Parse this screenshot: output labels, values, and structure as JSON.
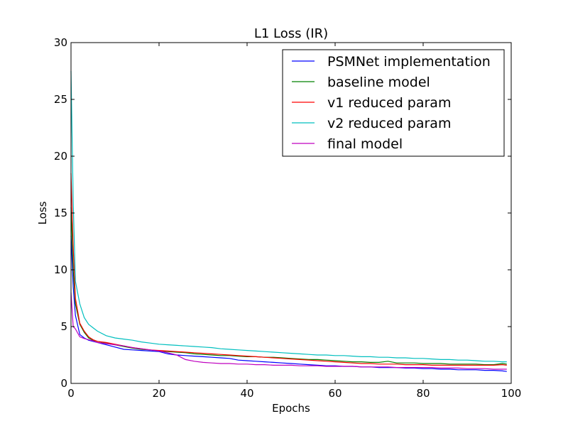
{
  "chart_data": {
    "type": "line",
    "title": "L1 Loss (IR)",
    "xlabel": "Epochs",
    "ylabel": "Loss",
    "xlim": [
      0,
      100
    ],
    "ylim": [
      0,
      30
    ],
    "xticks": [
      0,
      20,
      40,
      60,
      80,
      100
    ],
    "yticks": [
      0,
      5,
      10,
      15,
      20,
      25,
      30
    ],
    "grid": false,
    "legend_position": "top-right",
    "series": [
      {
        "name": "PSMNet implementation",
        "color": "#0000ff",
        "x": [
          0,
          0.5,
          1,
          2,
          3,
          4,
          5,
          6,
          8,
          10,
          12,
          14,
          16,
          18,
          20,
          22,
          24,
          26,
          28,
          30,
          32,
          34,
          36,
          38,
          40,
          42,
          44,
          46,
          48,
          50,
          52,
          54,
          56,
          58,
          60,
          62,
          64,
          66,
          68,
          70,
          72,
          74,
          76,
          78,
          80,
          82,
          84,
          86,
          88,
          90,
          92,
          94,
          96,
          98,
          99
        ],
        "y": [
          13.0,
          8.5,
          6.0,
          4.3,
          4.0,
          3.8,
          3.7,
          3.6,
          3.4,
          3.2,
          3.0,
          2.95,
          2.9,
          2.85,
          2.8,
          2.6,
          2.5,
          2.45,
          2.4,
          2.35,
          2.3,
          2.25,
          2.2,
          2.05,
          2.0,
          1.95,
          1.9,
          1.85,
          1.8,
          1.75,
          1.7,
          1.65,
          1.6,
          1.55,
          1.55,
          1.5,
          1.5,
          1.45,
          1.45,
          1.4,
          1.4,
          1.4,
          1.35,
          1.35,
          1.3,
          1.3,
          1.25,
          1.25,
          1.2,
          1.2,
          1.2,
          1.15,
          1.15,
          1.1,
          1.05
        ]
      },
      {
        "name": "baseline model",
        "color": "#008000",
        "x": [
          0,
          0.5,
          1,
          2,
          3,
          4,
          5,
          6,
          8,
          10,
          12,
          14,
          16,
          18,
          20,
          22,
          24,
          26,
          28,
          30,
          32,
          34,
          36,
          38,
          40,
          42,
          44,
          46,
          48,
          50,
          52,
          54,
          56,
          58,
          60,
          62,
          64,
          66,
          68,
          70,
          72,
          74,
          76,
          78,
          80,
          82,
          84,
          86,
          88,
          90,
          92,
          94,
          96,
          98,
          99
        ],
        "y": [
          15.5,
          10.0,
          7.0,
          5.2,
          4.5,
          4.0,
          3.8,
          3.7,
          3.55,
          3.4,
          3.25,
          3.1,
          3.0,
          2.95,
          2.85,
          2.8,
          2.75,
          2.7,
          2.6,
          2.55,
          2.5,
          2.45,
          2.45,
          2.4,
          2.35,
          2.35,
          2.3,
          2.3,
          2.25,
          2.2,
          2.15,
          2.1,
          2.1,
          2.05,
          2.0,
          1.95,
          1.9,
          1.9,
          1.85,
          1.85,
          1.95,
          1.8,
          1.8,
          1.8,
          1.75,
          1.75,
          1.75,
          1.7,
          1.7,
          1.7,
          1.7,
          1.65,
          1.65,
          1.75,
          1.7
        ]
      },
      {
        "name": "v1 reduced param",
        "color": "#ff0000",
        "x": [
          0,
          0.5,
          1,
          2,
          3,
          4,
          5,
          6,
          8,
          10,
          12,
          14,
          16,
          18,
          20,
          22,
          24,
          26,
          28,
          30,
          32,
          34,
          36,
          38,
          40,
          42,
          44,
          46,
          48,
          50,
          52,
          54,
          56,
          58,
          60,
          62,
          64,
          66,
          68,
          70,
          72,
          74,
          76,
          78,
          80,
          82,
          84,
          86,
          88,
          90,
          92,
          94,
          96,
          98,
          99
        ],
        "y": [
          18.5,
          12.0,
          7.5,
          5.3,
          4.6,
          4.1,
          3.85,
          3.7,
          3.6,
          3.45,
          3.3,
          3.15,
          3.05,
          2.95,
          2.9,
          2.85,
          2.8,
          2.75,
          2.7,
          2.65,
          2.6,
          2.55,
          2.5,
          2.45,
          2.4,
          2.35,
          2.3,
          2.25,
          2.2,
          2.15,
          2.1,
          2.05,
          2.0,
          1.95,
          1.9,
          1.85,
          1.8,
          1.75,
          1.75,
          1.7,
          1.7,
          1.7,
          1.65,
          1.65,
          1.65,
          1.6,
          1.6,
          1.6,
          1.6,
          1.6,
          1.6,
          1.6,
          1.6,
          1.65,
          1.6
        ]
      },
      {
        "name": "v2 reduced param",
        "color": "#00bfbf",
        "x": [
          0,
          0.5,
          1,
          2,
          3,
          4,
          5,
          6,
          8,
          10,
          12,
          14,
          16,
          18,
          20,
          22,
          24,
          26,
          28,
          30,
          32,
          34,
          36,
          38,
          40,
          42,
          44,
          46,
          48,
          50,
          52,
          54,
          56,
          58,
          60,
          62,
          64,
          66,
          68,
          70,
          72,
          74,
          76,
          78,
          80,
          82,
          84,
          86,
          88,
          90,
          92,
          94,
          96,
          98,
          99
        ],
        "y": [
          27.5,
          16.0,
          9.0,
          7.0,
          5.8,
          5.2,
          4.9,
          4.6,
          4.2,
          4.0,
          3.9,
          3.8,
          3.65,
          3.55,
          3.45,
          3.4,
          3.35,
          3.3,
          3.25,
          3.2,
          3.15,
          3.05,
          3.0,
          2.95,
          2.9,
          2.85,
          2.8,
          2.75,
          2.7,
          2.65,
          2.6,
          2.55,
          2.5,
          2.5,
          2.45,
          2.45,
          2.4,
          2.35,
          2.35,
          2.3,
          2.3,
          2.25,
          2.25,
          2.2,
          2.2,
          2.15,
          2.1,
          2.1,
          2.05,
          2.05,
          2.0,
          1.95,
          1.95,
          1.9,
          1.9
        ]
      },
      {
        "name": "final model",
        "color": "#bf00bf",
        "x": [
          0,
          0.5,
          1,
          2,
          3,
          4,
          5,
          6,
          8,
          10,
          12,
          14,
          16,
          18,
          20,
          22,
          24,
          26,
          28,
          30,
          32,
          34,
          36,
          38,
          40,
          42,
          44,
          46,
          48,
          50,
          52,
          54,
          56,
          58,
          60,
          62,
          64,
          66,
          68,
          70,
          72,
          74,
          76,
          78,
          80,
          82,
          84,
          86,
          88,
          90,
          92,
          94,
          96,
          98,
          99
        ],
        "y": [
          8.0,
          5.0,
          4.8,
          4.1,
          3.95,
          3.85,
          3.75,
          3.6,
          3.5,
          3.4,
          3.3,
          3.15,
          3.05,
          2.95,
          2.85,
          2.7,
          2.5,
          2.1,
          1.95,
          1.85,
          1.8,
          1.75,
          1.75,
          1.7,
          1.7,
          1.65,
          1.65,
          1.6,
          1.6,
          1.6,
          1.55,
          1.55,
          1.55,
          1.5,
          1.5,
          1.5,
          1.5,
          1.45,
          1.45,
          1.45,
          1.45,
          1.4,
          1.4,
          1.4,
          1.4,
          1.4,
          1.35,
          1.35,
          1.35,
          1.3,
          1.3,
          1.3,
          1.25,
          1.25,
          1.25
        ]
      }
    ]
  }
}
